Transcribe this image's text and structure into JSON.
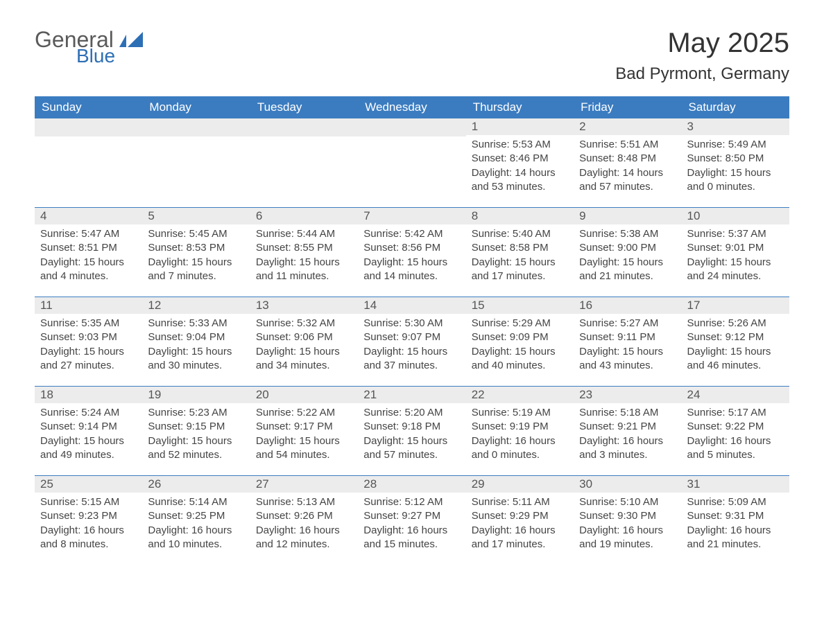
{
  "brand": {
    "text_main": "General",
    "text_accent": "Blue",
    "main_color": "#5a5a5a",
    "accent_color": "#2d6fb5",
    "flag_color": "#2d6fb5"
  },
  "title": "May 2025",
  "location": "Bad Pyrmont, Germany",
  "styling": {
    "header_bg": "#3b7cc0",
    "header_text": "#ffffff",
    "daynum_bg": "#ececec",
    "daynum_text": "#555555",
    "body_text": "#444444",
    "row_separator": "#3b7cc0",
    "page_bg": "#ffffff",
    "title_fontsize": 40,
    "location_fontsize": 24,
    "weekday_fontsize": 17,
    "body_fontsize": 15
  },
  "weekdays": [
    "Sunday",
    "Monday",
    "Tuesday",
    "Wednesday",
    "Thursday",
    "Friday",
    "Saturday"
  ],
  "weeks": [
    [
      {
        "empty": true
      },
      {
        "empty": true
      },
      {
        "empty": true
      },
      {
        "empty": true
      },
      {
        "num": "1",
        "sunrise": "Sunrise: 5:53 AM",
        "sunset": "Sunset: 8:46 PM",
        "daylight": "Daylight: 14 hours and 53 minutes."
      },
      {
        "num": "2",
        "sunrise": "Sunrise: 5:51 AM",
        "sunset": "Sunset: 8:48 PM",
        "daylight": "Daylight: 14 hours and 57 minutes."
      },
      {
        "num": "3",
        "sunrise": "Sunrise: 5:49 AM",
        "sunset": "Sunset: 8:50 PM",
        "daylight": "Daylight: 15 hours and 0 minutes."
      }
    ],
    [
      {
        "num": "4",
        "sunrise": "Sunrise: 5:47 AM",
        "sunset": "Sunset: 8:51 PM",
        "daylight": "Daylight: 15 hours and 4 minutes."
      },
      {
        "num": "5",
        "sunrise": "Sunrise: 5:45 AM",
        "sunset": "Sunset: 8:53 PM",
        "daylight": "Daylight: 15 hours and 7 minutes."
      },
      {
        "num": "6",
        "sunrise": "Sunrise: 5:44 AM",
        "sunset": "Sunset: 8:55 PM",
        "daylight": "Daylight: 15 hours and 11 minutes."
      },
      {
        "num": "7",
        "sunrise": "Sunrise: 5:42 AM",
        "sunset": "Sunset: 8:56 PM",
        "daylight": "Daylight: 15 hours and 14 minutes."
      },
      {
        "num": "8",
        "sunrise": "Sunrise: 5:40 AM",
        "sunset": "Sunset: 8:58 PM",
        "daylight": "Daylight: 15 hours and 17 minutes."
      },
      {
        "num": "9",
        "sunrise": "Sunrise: 5:38 AM",
        "sunset": "Sunset: 9:00 PM",
        "daylight": "Daylight: 15 hours and 21 minutes."
      },
      {
        "num": "10",
        "sunrise": "Sunrise: 5:37 AM",
        "sunset": "Sunset: 9:01 PM",
        "daylight": "Daylight: 15 hours and 24 minutes."
      }
    ],
    [
      {
        "num": "11",
        "sunrise": "Sunrise: 5:35 AM",
        "sunset": "Sunset: 9:03 PM",
        "daylight": "Daylight: 15 hours and 27 minutes."
      },
      {
        "num": "12",
        "sunrise": "Sunrise: 5:33 AM",
        "sunset": "Sunset: 9:04 PM",
        "daylight": "Daylight: 15 hours and 30 minutes."
      },
      {
        "num": "13",
        "sunrise": "Sunrise: 5:32 AM",
        "sunset": "Sunset: 9:06 PM",
        "daylight": "Daylight: 15 hours and 34 minutes."
      },
      {
        "num": "14",
        "sunrise": "Sunrise: 5:30 AM",
        "sunset": "Sunset: 9:07 PM",
        "daylight": "Daylight: 15 hours and 37 minutes."
      },
      {
        "num": "15",
        "sunrise": "Sunrise: 5:29 AM",
        "sunset": "Sunset: 9:09 PM",
        "daylight": "Daylight: 15 hours and 40 minutes."
      },
      {
        "num": "16",
        "sunrise": "Sunrise: 5:27 AM",
        "sunset": "Sunset: 9:11 PM",
        "daylight": "Daylight: 15 hours and 43 minutes."
      },
      {
        "num": "17",
        "sunrise": "Sunrise: 5:26 AM",
        "sunset": "Sunset: 9:12 PM",
        "daylight": "Daylight: 15 hours and 46 minutes."
      }
    ],
    [
      {
        "num": "18",
        "sunrise": "Sunrise: 5:24 AM",
        "sunset": "Sunset: 9:14 PM",
        "daylight": "Daylight: 15 hours and 49 minutes."
      },
      {
        "num": "19",
        "sunrise": "Sunrise: 5:23 AM",
        "sunset": "Sunset: 9:15 PM",
        "daylight": "Daylight: 15 hours and 52 minutes."
      },
      {
        "num": "20",
        "sunrise": "Sunrise: 5:22 AM",
        "sunset": "Sunset: 9:17 PM",
        "daylight": "Daylight: 15 hours and 54 minutes."
      },
      {
        "num": "21",
        "sunrise": "Sunrise: 5:20 AM",
        "sunset": "Sunset: 9:18 PM",
        "daylight": "Daylight: 15 hours and 57 minutes."
      },
      {
        "num": "22",
        "sunrise": "Sunrise: 5:19 AM",
        "sunset": "Sunset: 9:19 PM",
        "daylight": "Daylight: 16 hours and 0 minutes."
      },
      {
        "num": "23",
        "sunrise": "Sunrise: 5:18 AM",
        "sunset": "Sunset: 9:21 PM",
        "daylight": "Daylight: 16 hours and 3 minutes."
      },
      {
        "num": "24",
        "sunrise": "Sunrise: 5:17 AM",
        "sunset": "Sunset: 9:22 PM",
        "daylight": "Daylight: 16 hours and 5 minutes."
      }
    ],
    [
      {
        "num": "25",
        "sunrise": "Sunrise: 5:15 AM",
        "sunset": "Sunset: 9:23 PM",
        "daylight": "Daylight: 16 hours and 8 minutes."
      },
      {
        "num": "26",
        "sunrise": "Sunrise: 5:14 AM",
        "sunset": "Sunset: 9:25 PM",
        "daylight": "Daylight: 16 hours and 10 minutes."
      },
      {
        "num": "27",
        "sunrise": "Sunrise: 5:13 AM",
        "sunset": "Sunset: 9:26 PM",
        "daylight": "Daylight: 16 hours and 12 minutes."
      },
      {
        "num": "28",
        "sunrise": "Sunrise: 5:12 AM",
        "sunset": "Sunset: 9:27 PM",
        "daylight": "Daylight: 16 hours and 15 minutes."
      },
      {
        "num": "29",
        "sunrise": "Sunrise: 5:11 AM",
        "sunset": "Sunset: 9:29 PM",
        "daylight": "Daylight: 16 hours and 17 minutes."
      },
      {
        "num": "30",
        "sunrise": "Sunrise: 5:10 AM",
        "sunset": "Sunset: 9:30 PM",
        "daylight": "Daylight: 16 hours and 19 minutes."
      },
      {
        "num": "31",
        "sunrise": "Sunrise: 5:09 AM",
        "sunset": "Sunset: 9:31 PM",
        "daylight": "Daylight: 16 hours and 21 minutes."
      }
    ]
  ]
}
